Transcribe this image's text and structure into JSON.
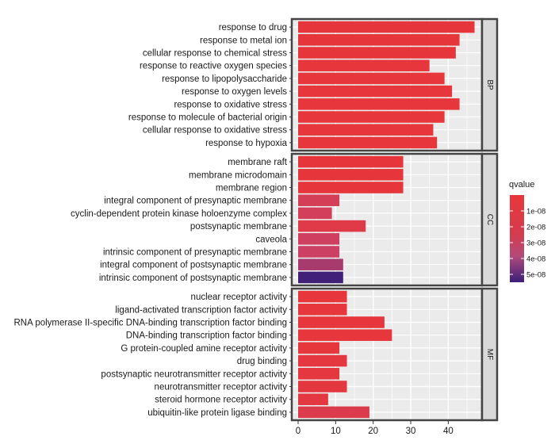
{
  "chart_data": {
    "type": "bar",
    "orientation": "horizontal",
    "xlabel": "",
    "ylabel": "",
    "xlim": [
      0,
      49
    ],
    "xticks": [
      0,
      10,
      20,
      30,
      40
    ],
    "grid": true,
    "legend": {
      "title": "qvalue",
      "placement": "right",
      "range": [
        0,
        5.5e-08
      ],
      "ticks": [
        {
          "value": 1e-08,
          "label": "1e-08"
        },
        {
          "value": 2e-08,
          "label": "2e-08"
        },
        {
          "value": 3e-08,
          "label": "3e-08"
        },
        {
          "value": 4e-08,
          "label": "4e-08"
        },
        {
          "value": 5e-08,
          "label": "5e-08"
        }
      ],
      "color_low": "#e8363a",
      "color_mid": "#c8436a",
      "color_high": "#3a1f7a"
    },
    "facets": [
      {
        "name": "BP",
        "categories": [
          {
            "label": "response to drug",
            "value": 47,
            "qvalue": 5e-10
          },
          {
            "label": "response to metal ion",
            "value": 43,
            "qvalue": 8e-10
          },
          {
            "label": "cellular response to chemical stress",
            "value": 42,
            "qvalue": 8e-10
          },
          {
            "label": "response to reactive oxygen species",
            "value": 35,
            "qvalue": 1e-09
          },
          {
            "label": "response to lipopolysaccharide",
            "value": 39,
            "qvalue": 1e-09
          },
          {
            "label": "response to oxygen levels",
            "value": 41,
            "qvalue": 1e-09
          },
          {
            "label": "response to oxidative stress",
            "value": 43,
            "qvalue": 1e-09
          },
          {
            "label": "response to molecule of bacterial origin",
            "value": 39,
            "qvalue": 1e-09
          },
          {
            "label": "cellular response to oxidative stress",
            "value": 36,
            "qvalue": 1e-09
          },
          {
            "label": "response to hypoxia",
            "value": 37,
            "qvalue": 1e-09
          }
        ]
      },
      {
        "name": "CC",
        "categories": [
          {
            "label": "membrane raft",
            "value": 28,
            "qvalue": 5e-10
          },
          {
            "label": "membrane microdomain",
            "value": 28,
            "qvalue": 5e-10
          },
          {
            "label": "membrane region",
            "value": 28,
            "qvalue": 5e-10
          },
          {
            "label": "integral component of presynaptic membrane",
            "value": 11,
            "qvalue": 1.8e-08
          },
          {
            "label": "cyclin-dependent protein kinase holoenzyme complex",
            "value": 9,
            "qvalue": 2e-08
          },
          {
            "label": "postsynaptic membrane",
            "value": 18,
            "qvalue": 8e-09
          },
          {
            "label": "caveola",
            "value": 11,
            "qvalue": 2.4e-08
          },
          {
            "label": "intrinsic component of presynaptic membrane",
            "value": 11,
            "qvalue": 2.6e-08
          },
          {
            "label": "integral component of postsynaptic membrane",
            "value": 12,
            "qvalue": 3.6e-08
          },
          {
            "label": "intrinsic component of postsynaptic membrane",
            "value": 12,
            "qvalue": 5.4e-08
          }
        ]
      },
      {
        "name": "MF",
        "categories": [
          {
            "label": "nuclear receptor activity",
            "value": 13,
            "qvalue": 1e-09
          },
          {
            "label": "ligand-activated transcription factor activity",
            "value": 13,
            "qvalue": 1e-09
          },
          {
            "label": "RNA polymerase II-specific DNA-binding transcription factor binding",
            "value": 23,
            "qvalue": 1e-09
          },
          {
            "label": "DNA-binding transcription factor binding",
            "value": 25,
            "qvalue": 1e-09
          },
          {
            "label": "G protein-coupled amine receptor activity",
            "value": 11,
            "qvalue": 2e-09
          },
          {
            "label": "drug binding",
            "value": 13,
            "qvalue": 3e-09
          },
          {
            "label": "postsynaptic neurotransmitter receptor activity",
            "value": 11,
            "qvalue": 3e-09
          },
          {
            "label": "neurotransmitter receptor activity",
            "value": 13,
            "qvalue": 4e-09
          },
          {
            "label": "steroid hormone receptor activity",
            "value": 8,
            "qvalue": 5e-09
          },
          {
            "label": "ubiquitin-like protein ligase binding",
            "value": 19,
            "qvalue": 1.2e-08
          }
        ]
      }
    ]
  }
}
